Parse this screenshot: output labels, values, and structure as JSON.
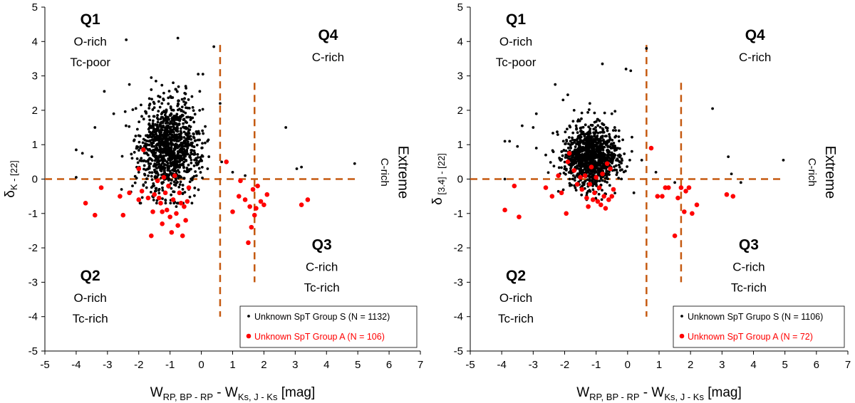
{
  "chart_data": [
    {
      "type": "scatter",
      "xlim": [
        -5,
        7
      ],
      "ylim": [
        -5,
        5
      ],
      "x_ticks": [
        "-5",
        "-4",
        "-3",
        "-2",
        "-1",
        "0",
        "1",
        "2",
        "3",
        "4",
        "5",
        "6",
        "7"
      ],
      "y_ticks": [
        "5",
        "4",
        "3",
        "2",
        "1",
        "0",
        "-1",
        "-2",
        "-3",
        "-4",
        "-5"
      ],
      "xlabel": {
        "main": "W",
        "sub1": "RP, BP - RP",
        "mid": " - W",
        "sub2": "Ks, J - Ks",
        "tail": " [mag]"
      },
      "ylabel": {
        "main": "δ",
        "sub": "K - [22]"
      },
      "grid": false,
      "legend_position": "bottom-right",
      "quadrants": [
        {
          "id": "Q1",
          "lines": [
            "O-rich",
            "Tc-poor"
          ]
        },
        {
          "id": "Q4",
          "lines": [
            "C-rich"
          ]
        },
        {
          "id": "Q2",
          "lines": [
            "O-rich",
            "Tc-rich"
          ]
        },
        {
          "id": "Q3",
          "lines": [
            "C-rich",
            "Tc-rich"
          ]
        }
      ],
      "extreme_label": [
        "Extreme",
        "C-rich"
      ],
      "divider_lines": {
        "horizontal_y": 0,
        "vertical_1": {
          "x": 0.6,
          "y_range": [
            -4,
            3.9
          ]
        },
        "vertical_2": {
          "x": 1.7,
          "y_range": [
            -3,
            2.8
          ]
        },
        "color": "#c55a11"
      },
      "series": [
        {
          "name": "Unknown SpT Group S  (N = 1132)",
          "color": "#000000",
          "marker": "small-dot",
          "n": 1132,
          "center": [
            -1.0,
            0.95
          ],
          "spread": [
            0.8,
            0.65
          ],
          "points": [
            [
              -2.4,
              4.05
            ],
            [
              -0.75,
              4.1
            ],
            [
              -0.1,
              3.05
            ],
            [
              0.05,
              3.05
            ],
            [
              -0.05,
              2.55
            ],
            [
              -3.1,
              2.55
            ],
            [
              -2.3,
              2.75
            ],
            [
              -1.6,
              2.95
            ],
            [
              -1.45,
              2.85
            ],
            [
              0.4,
              3.85
            ],
            [
              0.6,
              2.2
            ],
            [
              -2.8,
              1.9
            ],
            [
              -3.8,
              0.75
            ],
            [
              -4.0,
              0.85
            ],
            [
              -3.5,
              0.65
            ],
            [
              -4.0,
              0.05
            ],
            [
              -3.4,
              1.5
            ],
            [
              2.7,
              1.5
            ],
            [
              -0.8,
              -0.8
            ],
            [
              -0.3,
              -0.7
            ],
            [
              4.9,
              0.45
            ],
            [
              3.2,
              0.35
            ],
            [
              3.05,
              0.3
            ],
            [
              0.65,
              0.5
            ],
            [
              1.0,
              0.2
            ],
            [
              1.4,
              0.1
            ],
            [
              -2.55,
              -0.3
            ],
            [
              -2.2,
              -0.2
            ],
            [
              -2.0,
              0.2
            ],
            [
              -0.4,
              -0.3
            ],
            [
              0.2,
              0.3
            ],
            [
              -1.6,
              2.6
            ],
            [
              -1.2,
              2.5
            ],
            [
              -0.5,
              2.7
            ],
            [
              -0.3,
              2.4
            ],
            [
              -0.9,
              2.8
            ]
          ]
        },
        {
          "name": "Unknown SpT Group A (N = 106)",
          "color": "#ff0000",
          "marker": "dot",
          "n": 106,
          "points": [
            [
              -3.7,
              -0.7
            ],
            [
              -3.4,
              -1.05
            ],
            [
              -3.2,
              -0.25
            ],
            [
              -2.6,
              -0.5
            ],
            [
              -2.5,
              -1.05
            ],
            [
              -2.0,
              0.3
            ],
            [
              -2.0,
              -0.6
            ],
            [
              -1.9,
              -0.35
            ],
            [
              -1.85,
              0.85
            ],
            [
              -1.6,
              -1.65
            ],
            [
              -1.55,
              -0.95
            ],
            [
              -1.5,
              -0.45
            ],
            [
              -1.4,
              -0.05
            ],
            [
              -1.3,
              -0.7
            ],
            [
              -1.25,
              -1.3
            ],
            [
              -1.2,
              0.05
            ],
            [
              -1.15,
              -0.4
            ],
            [
              -1.1,
              -0.9
            ],
            [
              -1.05,
              -0.2
            ],
            [
              -1.0,
              -1.1
            ],
            [
              -0.95,
              -1.55
            ],
            [
              -0.9,
              -0.6
            ],
            [
              -0.85,
              0.1
            ],
            [
              -0.8,
              -1.0
            ],
            [
              -0.75,
              -1.35
            ],
            [
              -0.7,
              -0.4
            ],
            [
              -0.65,
              -0.7
            ],
            [
              -0.6,
              -1.65
            ],
            [
              -0.55,
              -0.8
            ],
            [
              -0.5,
              -1.2
            ],
            [
              -0.45,
              -0.65
            ],
            [
              -0.4,
              -0.25
            ],
            [
              -1.35,
              -0.55
            ],
            [
              -1.25,
              -0.95
            ],
            [
              -1.7,
              -0.55
            ],
            [
              -2.3,
              -0.4
            ],
            [
              0.8,
              0.5
            ],
            [
              1.0,
              -0.95
            ],
            [
              1.2,
              -0.5
            ],
            [
              1.25,
              -0.05
            ],
            [
              1.4,
              -0.6
            ],
            [
              1.5,
              -1.85
            ],
            [
              1.55,
              -0.8
            ],
            [
              1.6,
              -1.4
            ],
            [
              1.65,
              -0.3
            ],
            [
              1.7,
              -1.05
            ],
            [
              1.75,
              -0.85
            ],
            [
              1.8,
              -0.2
            ],
            [
              1.9,
              -0.65
            ],
            [
              2.0,
              -0.75
            ],
            [
              2.1,
              -0.45
            ],
            [
              3.2,
              -0.75
            ],
            [
              3.4,
              -0.6
            ]
          ]
        }
      ]
    },
    {
      "type": "scatter",
      "xlim": [
        -5,
        7
      ],
      "ylim": [
        -5,
        5
      ],
      "x_ticks": [
        "-5",
        "-4",
        "-3",
        "-2",
        "-1",
        "0",
        "1",
        "2",
        "3",
        "4",
        "5",
        "6",
        "7"
      ],
      "y_ticks": [
        "5",
        "4",
        "3",
        "2",
        "1",
        "0",
        "-1",
        "-2",
        "-3",
        "-4",
        "-5"
      ],
      "xlabel": {
        "main": "W",
        "sub1": "RP, BP - RP",
        "mid": " - W",
        "sub2": "Ks, J - Ks",
        "tail": " [mag]"
      },
      "ylabel": {
        "main": "δ",
        "sub": " [3.4] - [22]"
      },
      "grid": false,
      "legend_position": "bottom-right",
      "quadrants": [
        {
          "id": "Q1",
          "lines": [
            "O-rich",
            "Tc-poor"
          ]
        },
        {
          "id": "Q4",
          "lines": [
            "C-rich"
          ]
        },
        {
          "id": "Q2",
          "lines": [
            "O-rich",
            "Tc-rich"
          ]
        },
        {
          "id": "Q3",
          "lines": [
            "C-rich",
            "Tc-rich"
          ]
        }
      ],
      "extreme_label": [
        "Extreme",
        "C-rich"
      ],
      "divider_lines": {
        "horizontal_y": 0,
        "vertical_1": {
          "x": 0.6,
          "y_range": [
            -4,
            3.9
          ]
        },
        "vertical_2": {
          "x": 1.7,
          "y_range": [
            -3,
            2.8
          ]
        },
        "color": "#c55a11"
      },
      "series": [
        {
          "name": "Unknown SpT Grupo S (N = 1106)",
          "color": "#000000",
          "marker": "small-dot",
          "n": 1106,
          "center": [
            -1.15,
            0.65
          ],
          "spread": [
            0.7,
            0.45
          ],
          "points": [
            [
              -0.8,
              3.35
            ],
            [
              -0.05,
              3.2
            ],
            [
              0.1,
              3.15
            ],
            [
              0.6,
              3.8
            ],
            [
              -2.3,
              2.75
            ],
            [
              -1.9,
              2.45
            ],
            [
              -2.05,
              2.3
            ],
            [
              -2.9,
              1.9
            ],
            [
              2.7,
              2.05
            ],
            [
              -3.0,
              1.5
            ],
            [
              -3.35,
              1.55
            ],
            [
              -3.9,
              1.1
            ],
            [
              -3.75,
              1.1
            ],
            [
              -3.5,
              0.95
            ],
            [
              -3.9,
              0.0
            ],
            [
              3.2,
              0.65
            ],
            [
              4.95,
              0.55
            ],
            [
              3.3,
              0.15
            ],
            [
              3.6,
              -0.1
            ],
            [
              0.45,
              0.55
            ],
            [
              0.9,
              0.2
            ],
            [
              1.5,
              -0.1
            ],
            [
              -2.9,
              0.9
            ],
            [
              -2.6,
              0.7
            ],
            [
              -1.3,
              -0.6
            ],
            [
              0.2,
              -0.4
            ],
            [
              -0.5,
              1.9
            ],
            [
              -1.7,
              2.0
            ],
            [
              -1.2,
              2.2
            ]
          ]
        },
        {
          "name": "Unknown SpT Group A (N = 72)",
          "color": "#ff0000",
          "marker": "dot",
          "n": 72,
          "points": [
            [
              -3.9,
              -0.9
            ],
            [
              -3.6,
              -0.2
            ],
            [
              -3.45,
              -1.1
            ],
            [
              -2.6,
              -0.25
            ],
            [
              -2.4,
              -0.5
            ],
            [
              -2.1,
              -0.4
            ],
            [
              -1.95,
              -1.0
            ],
            [
              -1.9,
              0.5
            ],
            [
              -1.85,
              0.75
            ],
            [
              -1.7,
              0.25
            ],
            [
              -1.6,
              -0.15
            ],
            [
              -1.5,
              0.05
            ],
            [
              -1.45,
              -0.3
            ],
            [
              -1.35,
              0.1
            ],
            [
              -1.3,
              -0.55
            ],
            [
              -1.2,
              -0.15
            ],
            [
              -1.15,
              0.35
            ],
            [
              -1.05,
              -0.4
            ],
            [
              -1.0,
              0.05
            ],
            [
              -0.95,
              -0.65
            ],
            [
              -0.9,
              -0.25
            ],
            [
              -0.85,
              -0.75
            ],
            [
              -0.8,
              0.15
            ],
            [
              -0.75,
              -0.5
            ],
            [
              -0.7,
              -0.85
            ],
            [
              -0.6,
              -0.6
            ],
            [
              -0.55,
              0.3
            ],
            [
              -0.5,
              -0.5
            ],
            [
              -0.45,
              -0.3
            ],
            [
              -1.25,
              -0.8
            ],
            [
              -1.1,
              -0.6
            ],
            [
              -2.2,
              0.1
            ],
            [
              -0.65,
              0.45
            ],
            [
              0.75,
              0.9
            ],
            [
              0.95,
              -0.5
            ],
            [
              1.1,
              -0.5
            ],
            [
              1.2,
              -0.25
            ],
            [
              1.3,
              -0.25
            ],
            [
              1.5,
              -1.65
            ],
            [
              1.6,
              -0.55
            ],
            [
              1.7,
              -0.25
            ],
            [
              1.8,
              -0.95
            ],
            [
              1.85,
              -0.35
            ],
            [
              1.95,
              -0.25
            ],
            [
              2.05,
              -1.0
            ],
            [
              2.2,
              -0.75
            ],
            [
              3.15,
              -0.45
            ],
            [
              3.35,
              -0.5
            ]
          ]
        }
      ]
    }
  ]
}
